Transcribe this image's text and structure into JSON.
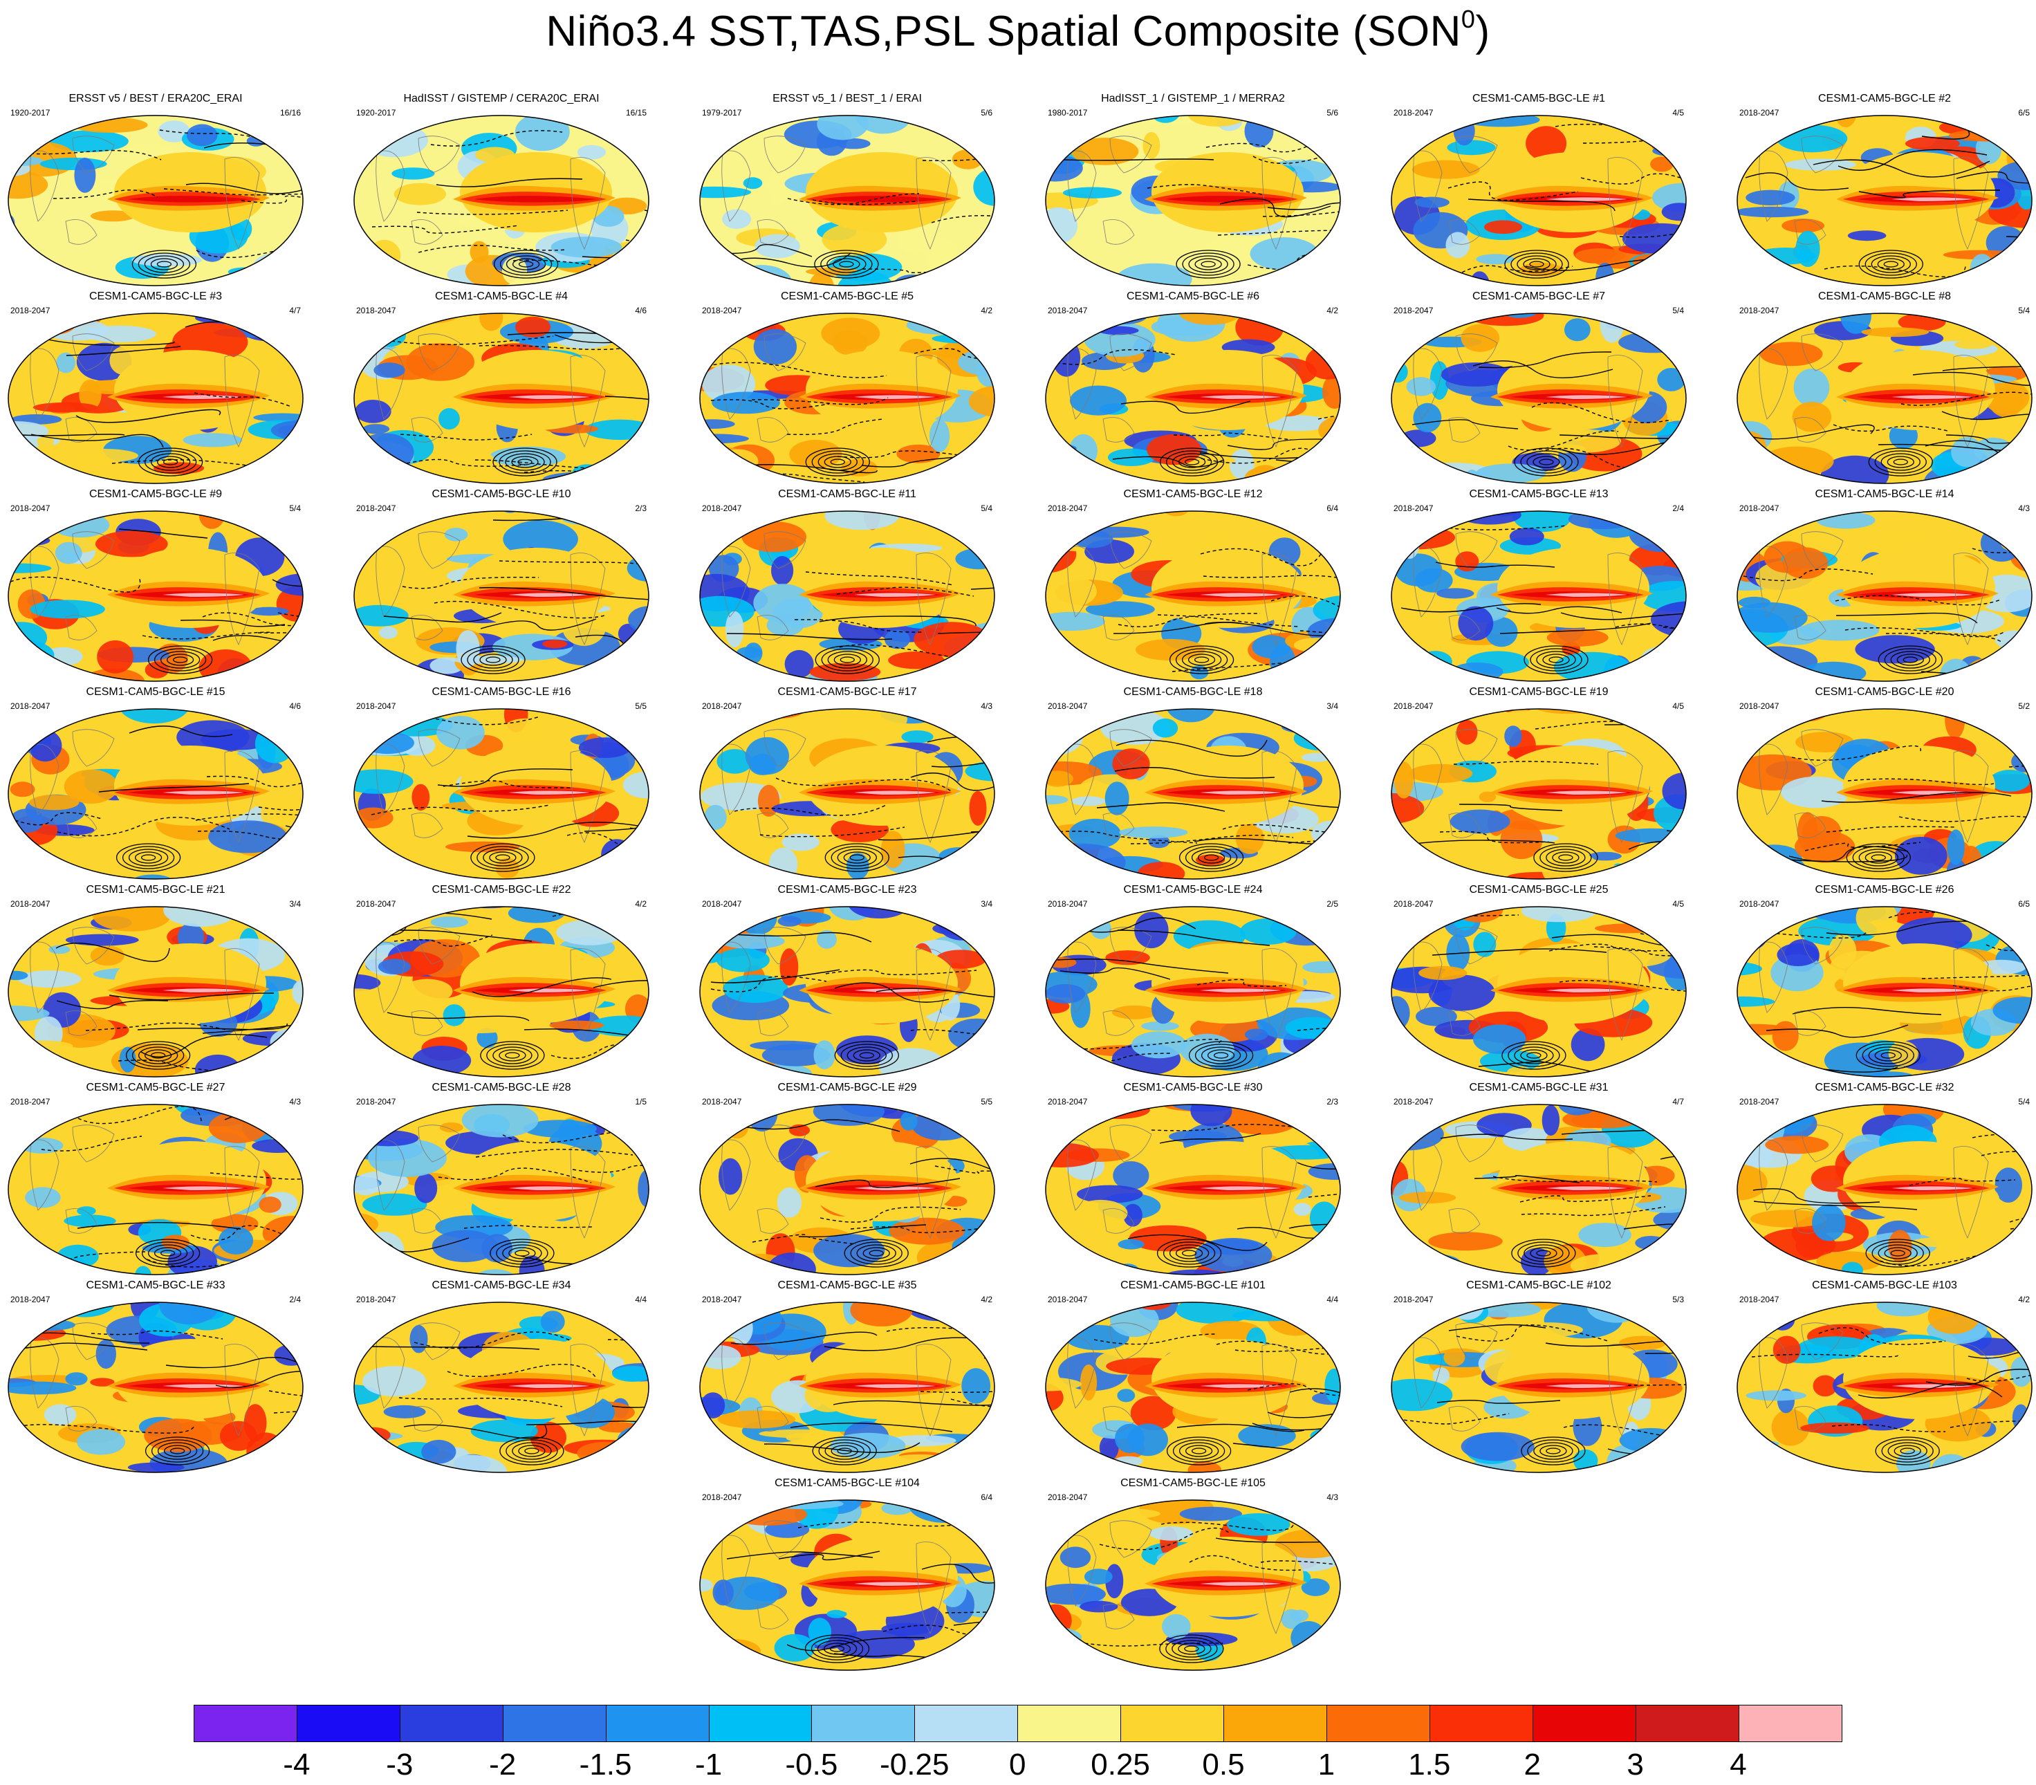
{
  "title": "Niño3.4 SST,TAS,PSL Spatial Composite (SON",
  "title_superscript": "0",
  "title_close": ")",
  "panels": [
    {
      "title": "ERSST v5 / BEST / ERA20C_ERAI",
      "years": "1920-2017",
      "count": "16/16",
      "type": "obs"
    },
    {
      "title": "HadISST / GISTEMP / CERA20C_ERAI",
      "years": "1920-2017",
      "count": "16/15",
      "type": "obs"
    },
    {
      "title": "ERSST v5_1 / BEST_1 / ERAI",
      "years": "1979-2017",
      "count": "5/6",
      "type": "obs"
    },
    {
      "title": "HadISST_1 / GISTEMP_1 / MERRA2",
      "years": "1980-2017",
      "count": "5/6",
      "type": "obs"
    },
    {
      "title": "CESM1-CAM5-BGC-LE #1",
      "years": "2018-2047",
      "count": "4/5",
      "type": "model"
    },
    {
      "title": "CESM1-CAM5-BGC-LE #2",
      "years": "2018-2047",
      "count": "6/5",
      "type": "model"
    },
    {
      "title": "CESM1-CAM5-BGC-LE #3",
      "years": "2018-2047",
      "count": "4/7",
      "type": "model"
    },
    {
      "title": "CESM1-CAM5-BGC-LE #4",
      "years": "2018-2047",
      "count": "4/6",
      "type": "model"
    },
    {
      "title": "CESM1-CAM5-BGC-LE #5",
      "years": "2018-2047",
      "count": "4/2",
      "type": "model"
    },
    {
      "title": "CESM1-CAM5-BGC-LE #6",
      "years": "2018-2047",
      "count": "4/2",
      "type": "model"
    },
    {
      "title": "CESM1-CAM5-BGC-LE #7",
      "years": "2018-2047",
      "count": "5/4",
      "type": "model"
    },
    {
      "title": "CESM1-CAM5-BGC-LE #8",
      "years": "2018-2047",
      "count": "5/4",
      "type": "model"
    },
    {
      "title": "CESM1-CAM5-BGC-LE #9",
      "years": "2018-2047",
      "count": "5/4",
      "type": "model"
    },
    {
      "title": "CESM1-CAM5-BGC-LE #10",
      "years": "2018-2047",
      "count": "2/3",
      "type": "model"
    },
    {
      "title": "CESM1-CAM5-BGC-LE #11",
      "years": "2018-2047",
      "count": "5/4",
      "type": "model"
    },
    {
      "title": "CESM1-CAM5-BGC-LE #12",
      "years": "2018-2047",
      "count": "6/4",
      "type": "model"
    },
    {
      "title": "CESM1-CAM5-BGC-LE #13",
      "years": "2018-2047",
      "count": "2/4",
      "type": "model"
    },
    {
      "title": "CESM1-CAM5-BGC-LE #14",
      "years": "2018-2047",
      "count": "4/3",
      "type": "model"
    },
    {
      "title": "CESM1-CAM5-BGC-LE #15",
      "years": "2018-2047",
      "count": "4/6",
      "type": "model"
    },
    {
      "title": "CESM1-CAM5-BGC-LE #16",
      "years": "2018-2047",
      "count": "5/5",
      "type": "model"
    },
    {
      "title": "CESM1-CAM5-BGC-LE #17",
      "years": "2018-2047",
      "count": "4/3",
      "type": "model"
    },
    {
      "title": "CESM1-CAM5-BGC-LE #18",
      "years": "2018-2047",
      "count": "3/4",
      "type": "model"
    },
    {
      "title": "CESM1-CAM5-BGC-LE #19",
      "years": "2018-2047",
      "count": "4/5",
      "type": "model"
    },
    {
      "title": "CESM1-CAM5-BGC-LE #20",
      "years": "2018-2047",
      "count": "5/2",
      "type": "model"
    },
    {
      "title": "CESM1-CAM5-BGC-LE #21",
      "years": "2018-2047",
      "count": "3/4",
      "type": "model"
    },
    {
      "title": "CESM1-CAM5-BGC-LE #22",
      "years": "2018-2047",
      "count": "4/2",
      "type": "model"
    },
    {
      "title": "CESM1-CAM5-BGC-LE #23",
      "years": "2018-2047",
      "count": "3/4",
      "type": "model"
    },
    {
      "title": "CESM1-CAM5-BGC-LE #24",
      "years": "2018-2047",
      "count": "2/5",
      "type": "model"
    },
    {
      "title": "CESM1-CAM5-BGC-LE #25",
      "years": "2018-2047",
      "count": "4/5",
      "type": "model"
    },
    {
      "title": "CESM1-CAM5-BGC-LE #26",
      "years": "2018-2047",
      "count": "6/5",
      "type": "model"
    },
    {
      "title": "CESM1-CAM5-BGC-LE #27",
      "years": "2018-2047",
      "count": "4/3",
      "type": "model"
    },
    {
      "title": "CESM1-CAM5-BGC-LE #28",
      "years": "2018-2047",
      "count": "1/5",
      "type": "model"
    },
    {
      "title": "CESM1-CAM5-BGC-LE #29",
      "years": "2018-2047",
      "count": "5/5",
      "type": "model"
    },
    {
      "title": "CESM1-CAM5-BGC-LE #30",
      "years": "2018-2047",
      "count": "2/3",
      "type": "model"
    },
    {
      "title": "CESM1-CAM5-BGC-LE #31",
      "years": "2018-2047",
      "count": "4/7",
      "type": "model"
    },
    {
      "title": "CESM1-CAM5-BGC-LE #32",
      "years": "2018-2047",
      "count": "5/4",
      "type": "model"
    },
    {
      "title": "CESM1-CAM5-BGC-LE #33",
      "years": "2018-2047",
      "count": "2/4",
      "type": "model"
    },
    {
      "title": "CESM1-CAM5-BGC-LE #34",
      "years": "2018-2047",
      "count": "4/4",
      "type": "model"
    },
    {
      "title": "CESM1-CAM5-BGC-LE #35",
      "years": "2018-2047",
      "count": "4/2",
      "type": "model"
    },
    {
      "title": "CESM1-CAM5-BGC-LE #101",
      "years": "2018-2047",
      "count": "4/4",
      "type": "model"
    },
    {
      "title": "CESM1-CAM5-BGC-LE #102",
      "years": "2018-2047",
      "count": "5/3",
      "type": "model"
    },
    {
      "title": "CESM1-CAM5-BGC-LE #103",
      "years": "2018-2047",
      "count": "4/2",
      "type": "model"
    },
    {
      "title": "CESM1-CAM5-BGC-LE #104",
      "years": "2018-2047",
      "count": "6/4",
      "type": "model"
    },
    {
      "title": "CESM1-CAM5-BGC-LE #105",
      "years": "2018-2047",
      "count": "4/3",
      "type": "model"
    }
  ],
  "colorbar": {
    "labels": [
      "-4",
      "-3",
      "-2",
      "-1.5",
      "-1",
      "-0.5",
      "-0.25",
      "0",
      "0.25",
      "0.5",
      "1",
      "1.5",
      "2",
      "3",
      "4"
    ],
    "colors": [
      "#7b24f0",
      "#1a0cf5",
      "#2a3ee0",
      "#2f74e6",
      "#1f93f0",
      "#00bff5",
      "#70c8f2",
      "#b6dff5",
      "#faf58a",
      "#fcd52e",
      "#fba70a",
      "#fb6c08",
      "#fa2f07",
      "#e80505",
      "#cf1b1b",
      "#fcb2b6"
    ]
  }
}
